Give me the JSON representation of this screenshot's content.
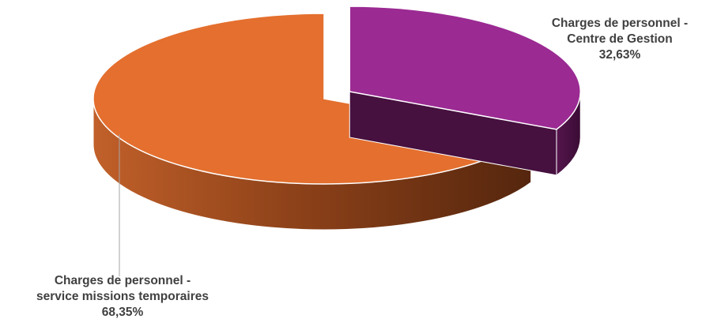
{
  "chart_data": {
    "type": "pie",
    "style": "3d-exploded",
    "title": "",
    "slices": [
      {
        "name_line1": "Charges de personnel -",
        "name_line2": "Centre de Gestion",
        "value_label": "32,63%",
        "value": 32.63,
        "color": "#9B2A93",
        "side_color": "#46103F",
        "exploded": true
      },
      {
        "name_line1": "Charges de personnel -",
        "name_line2": "service missions temporaires",
        "value_label": "68,35%",
        "value": 68.35,
        "color": "#E46F2E",
        "side_color": "#A8501F",
        "exploded": false
      }
    ]
  }
}
